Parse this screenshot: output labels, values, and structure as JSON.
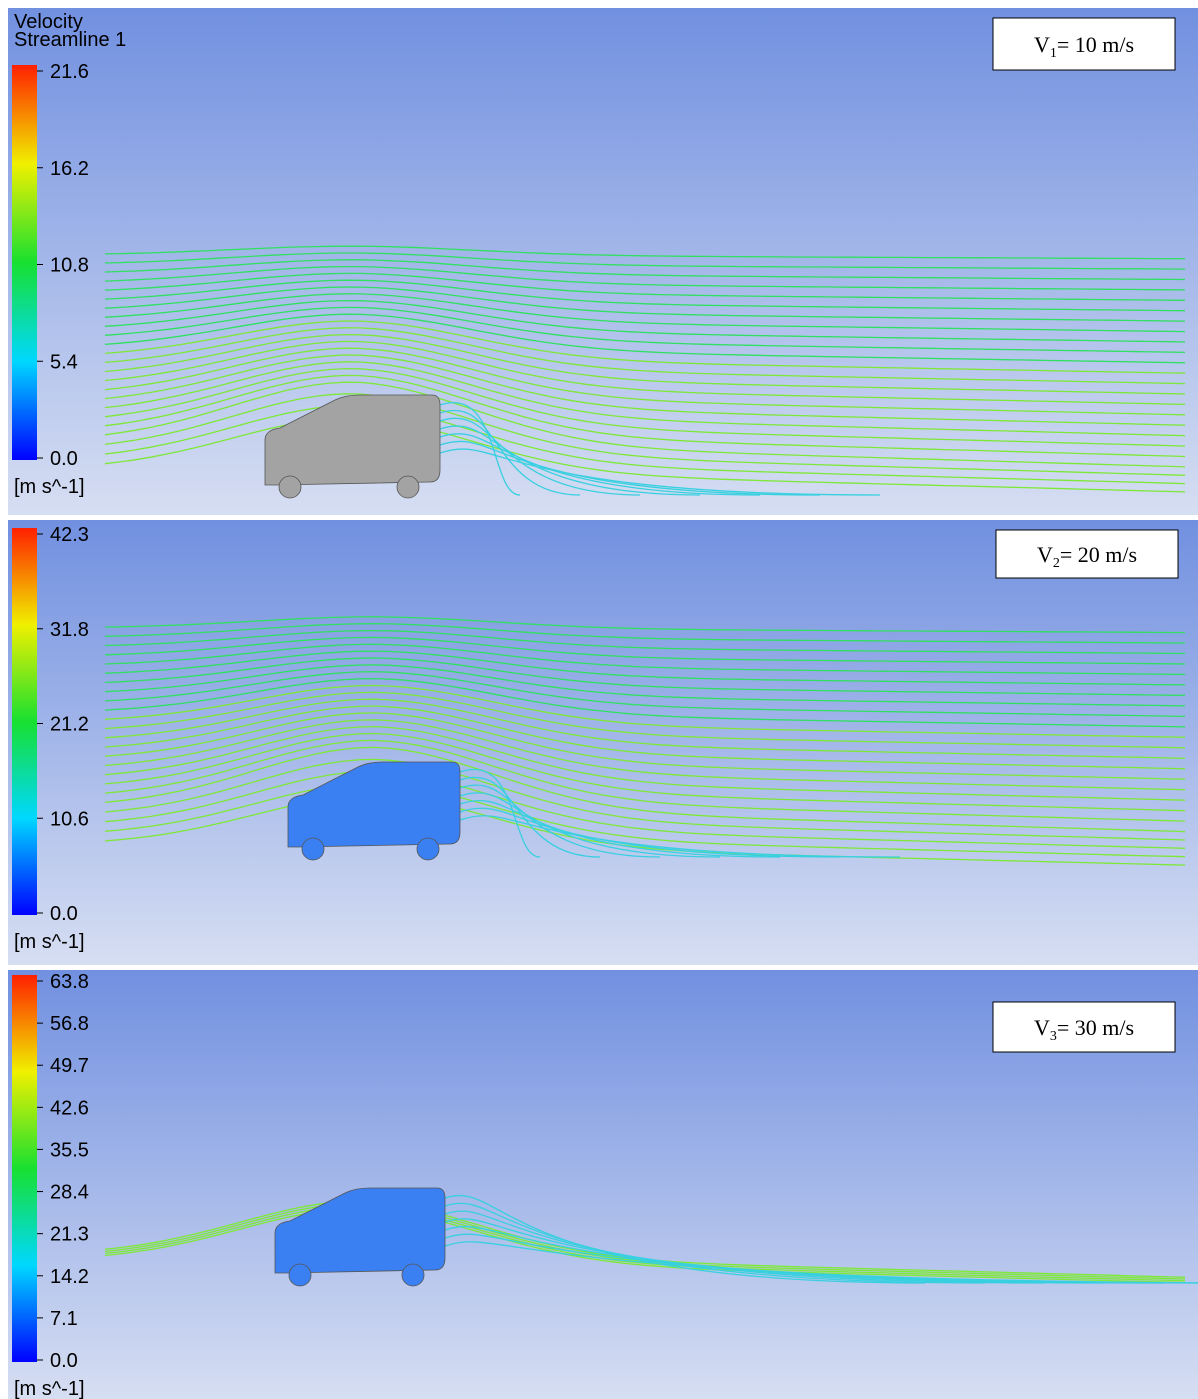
{
  "panels": [
    {
      "legend": {
        "title": [
          "Velocity",
          "Streamline 1"
        ],
        "ticks": [
          "21.6",
          "16.2",
          "10.8",
          "5.4",
          "0.0"
        ],
        "unit": "[m s^-1]"
      },
      "label": {
        "symbol": "V",
        "subscript": "1",
        "text": "= 10 m/s"
      }
    },
    {
      "legend": {
        "ticks": [
          "42.3",
          "31.8",
          "21.2",
          "10.6",
          "0.0"
        ],
        "unit": "[m s^-1]"
      },
      "label": {
        "symbol": "V",
        "subscript": "2",
        "text": "= 20 m/s"
      }
    },
    {
      "legend": {
        "ticks": [
          "63.8",
          "56.8",
          "49.7",
          "42.6",
          "35.5",
          "28.4",
          "21.3",
          "14.2",
          "7.1",
          "0.0"
        ],
        "unit": "[m s^-1]"
      },
      "label": {
        "symbol": "V",
        "subscript": "3",
        "text": "= 30 m/s"
      }
    }
  ]
}
